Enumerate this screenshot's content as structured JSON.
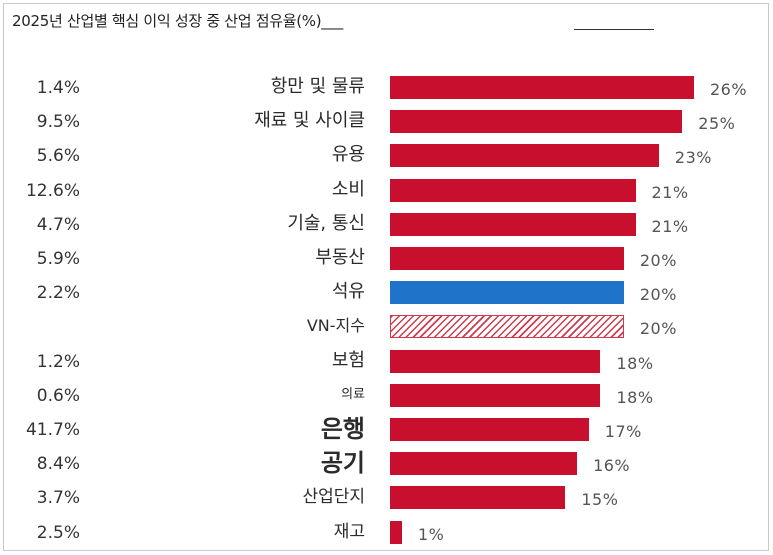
{
  "chart_data": {
    "type": "bar",
    "orientation": "horizontal",
    "title": "2025년 산업별 핵심 이익 성장 중 산업 점유율(%)___",
    "xlim": [
      0,
      26
    ],
    "share_unit": "%",
    "value_unit": "%",
    "colors": {
      "default": "#c8102e",
      "highlight": "#1f73c8",
      "index_hatch": "#d03a4a"
    },
    "rows": [
      {
        "category": "항만 및 물류",
        "share": "1.4%",
        "value": 26,
        "value_label": "26%",
        "style": "solid"
      },
      {
        "category": "재료 및 사이클",
        "share": "9.5%",
        "value": 25,
        "value_label": "25%",
        "style": "solid"
      },
      {
        "category": "유용",
        "share": "5.6%",
        "value": 23,
        "value_label": "23%",
        "style": "solid"
      },
      {
        "category": "소비",
        "share": "12.6%",
        "value": 21,
        "value_label": "21%",
        "style": "solid"
      },
      {
        "category": "기술, 통신",
        "share": "4.7%",
        "value": 21,
        "value_label": "21%",
        "style": "solid"
      },
      {
        "category": "부동산",
        "share": "5.9%",
        "value": 20,
        "value_label": "20%",
        "style": "solid"
      },
      {
        "category": "석유",
        "share": "2.2%",
        "value": 20,
        "value_label": "20%",
        "style": "highlight"
      },
      {
        "category": "VN-지수",
        "share": "",
        "value": 20,
        "value_label": "20%",
        "style": "hatched"
      },
      {
        "category": "보험",
        "share": "1.2%",
        "value": 18,
        "value_label": "18%",
        "style": "solid"
      },
      {
        "category": "의료",
        "share": "0.6%",
        "value": 18,
        "value_label": "18%",
        "style": "solid"
      },
      {
        "category": "은행",
        "share": "41.7%",
        "value": 17,
        "value_label": "17%",
        "style": "solid"
      },
      {
        "category": "공기",
        "share": "8.4%",
        "value": 16,
        "value_label": "16%",
        "style": "solid"
      },
      {
        "category": "산업단지",
        "share": "3.7%",
        "value": 15,
        "value_label": "15%",
        "style": "solid"
      },
      {
        "category": "재고",
        "share": "2.5%",
        "value": 1,
        "value_label": "1%",
        "style": "solid"
      }
    ]
  }
}
